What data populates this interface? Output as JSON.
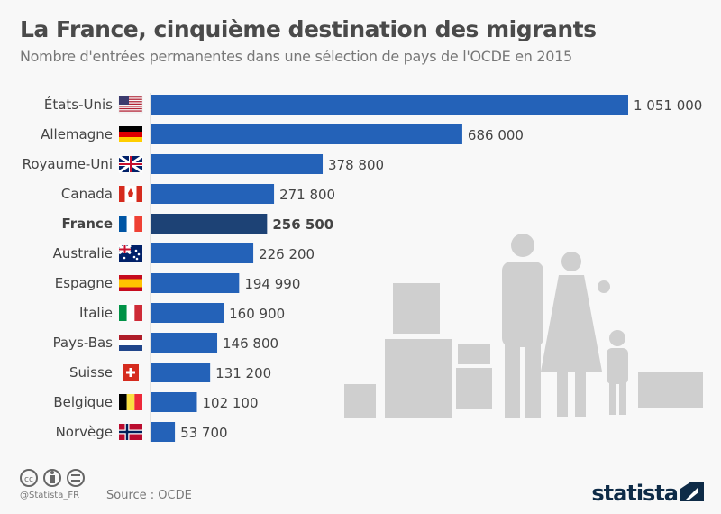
{
  "title": "La France, cinquième destination des migrants",
  "subtitle": "Nombre d'entrées permanentes dans une sélection de pays de l'OCDE en 2015",
  "footer": {
    "handle": "@Statista_FR",
    "source": "Source : OCDE",
    "brand": "statista"
  },
  "colors": {
    "bar": "#2462b8",
    "highlight": "#1d4275",
    "illustration": "#cfcfcf"
  },
  "chart_data": {
    "type": "bar",
    "orientation": "horizontal",
    "categories": [
      "États-Unis",
      "Allemagne",
      "Royaume-Uni",
      "Canada",
      "France",
      "Australie",
      "Espagne",
      "Italie",
      "Pays-Bas",
      "Suisse",
      "Belgique",
      "Norvège"
    ],
    "values": [
      1051000,
      686000,
      378800,
      271800,
      256500,
      226200,
      194990,
      160900,
      146800,
      131200,
      102100,
      53700
    ],
    "labels": [
      "1 051 000",
      "686 000",
      "378 800",
      "271 800",
      "256 500",
      "226 200",
      "194 990",
      "160 900",
      "146 800",
      "131 200",
      "102 100",
      "53 700"
    ],
    "highlight": "France",
    "xlim": [
      0,
      1051000
    ],
    "grid": false
  }
}
